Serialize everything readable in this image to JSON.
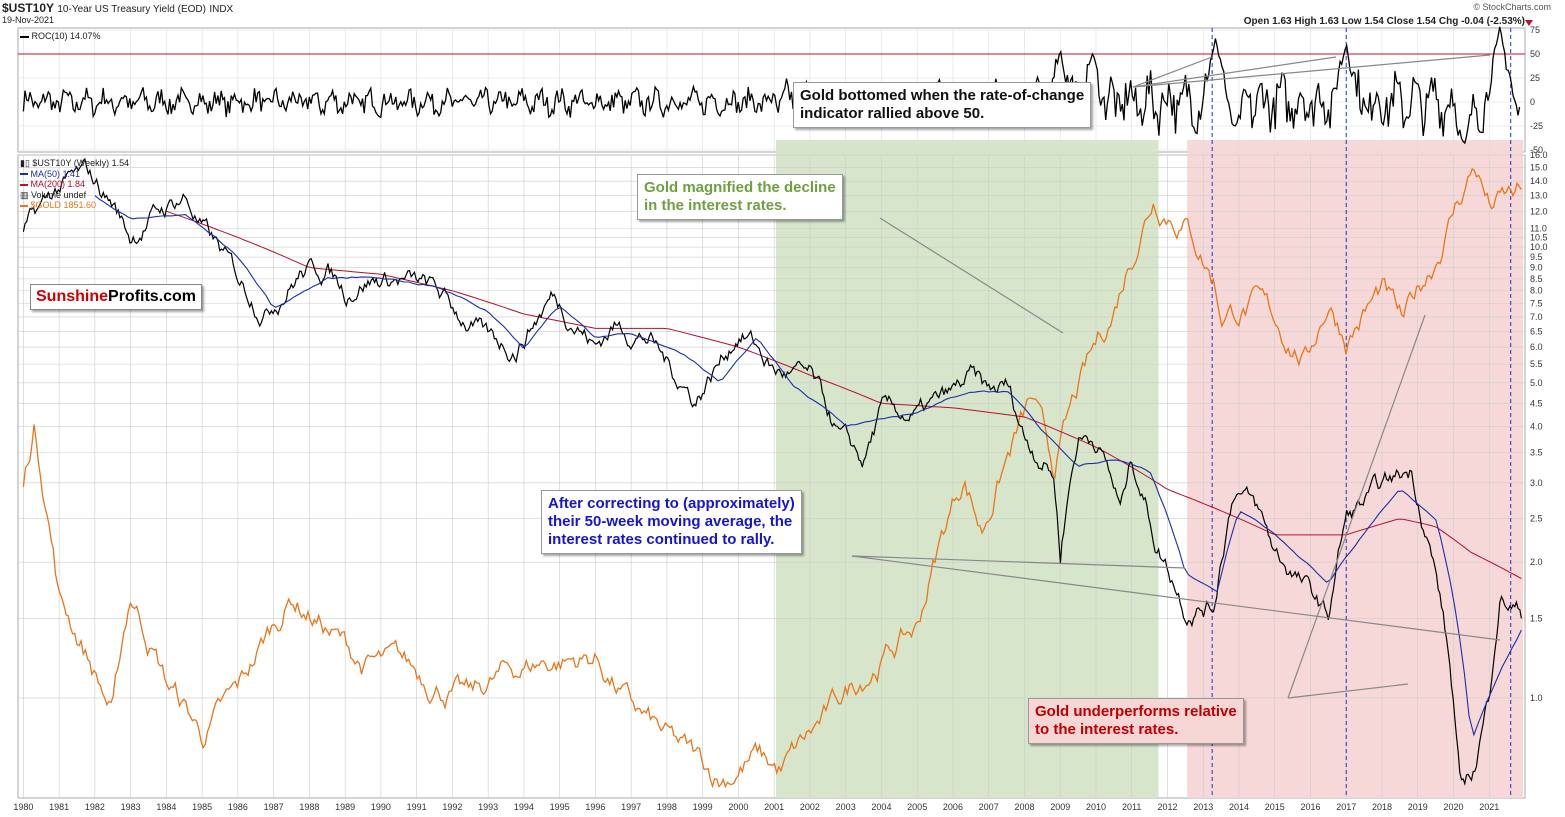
{
  "header": {
    "symbol": "$UST10Y",
    "description": "10-Year US Treasury Yield (EOD)",
    "exchange": "INDX",
    "date": "19-Nov-2021",
    "ohlc": "Open 1.63  High 1.63  Low 1.54  Close 1.54  Chg -0.04 (-2.53%)",
    "copyright": "© StockCharts.com"
  },
  "logo": {
    "part1": "Sunshine",
    "part2": "Profits.com",
    "color1": "#cc0000",
    "color2": "#000000"
  },
  "colors": {
    "price": "#000000",
    "ma50": "#1c2fa8",
    "ma200": "#b5122e",
    "gold": "#e8761a",
    "green_zone": "#d5e5c8",
    "red_zone": "#f7d6d6",
    "roc_line": "#c0102a",
    "marker": "#1f2fd0"
  },
  "annotations": {
    "roc_callout": [
      "Gold bottomed when the rate-of-change",
      "indicator rallied above 50."
    ],
    "green_callout": [
      "Gold magnified the decline",
      "in the interest rates."
    ],
    "blue_callout": [
      "After correcting to (approximately)",
      "their 50-week moving average, the",
      "interest rates continued to rally."
    ],
    "red_callout": [
      "Gold underperforms relative",
      "to the interest rates."
    ]
  },
  "chart_data": [
    {
      "type": "line",
      "title": "ROC(10) 14.07%",
      "series": [
        {
          "name": "ROC(10)",
          "last": 14.07
        }
      ],
      "reference_line": 50,
      "ylim": [
        -50,
        75
      ],
      "y_ticks": [
        "75",
        "50",
        "25",
        "0",
        "-25",
        "-50"
      ]
    },
    {
      "type": "line",
      "title": "$UST10Y (Weekly) 1.54",
      "y_scale": "log",
      "ylim": [
        0.6,
        16.0
      ],
      "y_ticks": [
        "16.0",
        "15.0",
        "14.0",
        "13.0",
        "12.0",
        "11.0",
        "10.5",
        "10.0",
        "9.5",
        "9.0",
        "8.5",
        "8.0",
        "7.5",
        "7.0",
        "6.5",
        "6.0",
        "5.5",
        "5.0",
        "4.5",
        "4.0",
        "3.5",
        "3.0",
        "2.5",
        "2.0",
        "1.5",
        "1.0"
      ],
      "x_ticks": [
        "1980",
        "1981",
        "1982",
        "1983",
        "1984",
        "1985",
        "1986",
        "1987",
        "1988",
        "1989",
        "1990",
        "1991",
        "1992",
        "1993",
        "1994",
        "1995",
        "1996",
        "1997",
        "1998",
        "1999",
        "2000",
        "2001",
        "2002",
        "2003",
        "2004",
        "2005",
        "2006",
        "2007",
        "2008",
        "2009",
        "2010",
        "2011",
        "2012",
        "2013",
        "2014",
        "2015",
        "2016",
        "2017",
        "2018",
        "2019",
        "2020",
        "2021"
      ],
      "legend": [
        "$UST10Y (Weekly) 1.54",
        "MA(50) 1.41",
        "MA(200) 1.84",
        "Volume undef",
        "$GOLD 1851.60"
      ],
      "shaded_ranges": [
        {
          "color": "green",
          "x": [
            2001.05,
            2011.75
          ]
        },
        {
          "color": "red",
          "x": [
            2012.55,
            2021.95
          ]
        }
      ],
      "vertical_markers": [
        2013.25,
        2017.0,
        2021.6
      ],
      "series": [
        {
          "name": "$UST10Y",
          "x": [
            1980,
            1981,
            1981.75,
            1982.5,
            1983,
            1983.5,
            1984.5,
            1985,
            1986,
            1986.75,
            1987.75,
            1988.5,
            1989,
            1989.5,
            1990.5,
            1991.5,
            1992,
            1993,
            1993.8,
            1994.8,
            1995.5,
            1996,
            1996.5,
            1997.5,
            1998,
            1998.8,
            1999.5,
            2000,
            2000.3,
            2001,
            2002,
            2002.8,
            2003.5,
            2004,
            2005,
            2006,
            2006.5,
            2007,
            2007.5,
            2008,
            2008.8,
            2009,
            2009.5,
            2010,
            2010.7,
            2011,
            2011.7,
            2012.5,
            2013.3,
            2013.9,
            2014.5,
            2015,
            2016.5,
            2017,
            2018,
            2018.8,
            2019.5,
            2020.2,
            2020.6,
            2021,
            2021.3,
            2021.9
          ],
          "values": [
            10.8,
            13.5,
            14.5,
            12.5,
            10.5,
            11.5,
            13.0,
            11.0,
            8.5,
            7.3,
            8.8,
            9.0,
            8.0,
            8.5,
            8.5,
            8.0,
            7.3,
            6.2,
            6.0,
            7.8,
            6.8,
            6.0,
            6.7,
            6.3,
            5.5,
            4.6,
            5.6,
            6.5,
            6.3,
            5.3,
            5.1,
            3.8,
            3.3,
            4.3,
            4.2,
            4.7,
            5.1,
            4.7,
            4.9,
            3.8,
            3.2,
            2.1,
            3.8,
            3.8,
            2.6,
            3.4,
            2.2,
            1.6,
            1.6,
            3.0,
            2.6,
            2.1,
            1.5,
            2.5,
            2.9,
            3.2,
            1.9,
            0.6,
            0.7,
            1.0,
            1.7,
            1.54
          ]
        },
        {
          "name": "MA(50)",
          "x": [
            1982,
            1983,
            1984.5,
            1986,
            1987,
            1988.5,
            1990,
            1991.5,
            1993,
            1994,
            1995,
            1996,
            1997,
            1998.5,
            1999.5,
            2000.5,
            2001.5,
            2003,
            2004,
            2005,
            2006.5,
            2007.5,
            2008.5,
            2009.5,
            2010.5,
            2011.5,
            2012.5,
            2013.4,
            2014,
            2015,
            2016.5,
            2017.5,
            2018.5,
            2019.5,
            2020.5,
            2021,
            2021.9
          ],
          "values": [
            13.0,
            11.5,
            11.8,
            9.5,
            7.3,
            8.5,
            8.6,
            8.2,
            7.2,
            6.0,
            7.4,
            6.3,
            6.5,
            5.7,
            5.0,
            6.3,
            5.0,
            4.0,
            4.1,
            4.3,
            4.8,
            4.8,
            3.9,
            3.3,
            3.4,
            3.2,
            1.9,
            1.7,
            2.6,
            2.3,
            1.8,
            2.3,
            2.9,
            2.5,
            0.8,
            1.0,
            1.41
          ]
        },
        {
          "name": "MA(200)",
          "x": [
            1984,
            1986,
            1988,
            1990,
            1992,
            1994,
            1996,
            1998,
            2000,
            2002,
            2004,
            2006,
            2008,
            2010,
            2012,
            2013.5,
            2015,
            2017,
            2018.5,
            2019.5,
            2020.5,
            2021.9
          ],
          "values": [
            12.0,
            10.5,
            9.0,
            8.7,
            8.0,
            7.1,
            6.6,
            6.6,
            6.0,
            5.2,
            4.5,
            4.4,
            4.2,
            3.6,
            2.9,
            2.6,
            2.3,
            2.3,
            2.5,
            2.4,
            2.1,
            1.84
          ]
        },
        {
          "name": "$GOLD",
          "x": [
            1980,
            1980.3,
            1981,
            1982.5,
            1983,
            1984,
            1985,
            1986,
            1987.5,
            1988.5,
            1989.5,
            1990.5,
            1991.5,
            1992.5,
            1993.5,
            1994.5,
            1996,
            1997,
            1998,
            1999.5,
            2000.5,
            2001.2,
            2002.5,
            2003.5,
            2005,
            2006.3,
            2006.8,
            2008.2,
            2008.8,
            2009.5,
            2010.5,
            2011.6,
            2012.5,
            2013.3,
            2013.5,
            2014.5,
            2015.9,
            2016.5,
            2017,
            2018,
            2018.6,
            2019.5,
            2020.6,
            2021,
            2021.9
          ],
          "values": [
            700,
            850,
            480,
            320,
            480,
            360,
            300,
            345,
            480,
            430,
            380,
            380,
            360,
            340,
            370,
            385,
            390,
            330,
            295,
            260,
            280,
            265,
            320,
            370,
            430,
            720,
            600,
            920,
            730,
            950,
            1250,
            1850,
            1700,
            1400,
            1250,
            1280,
            1060,
            1300,
            1150,
            1340,
            1180,
            1500,
            2050,
            1780,
            1851.6
          ]
        }
      ]
    }
  ]
}
